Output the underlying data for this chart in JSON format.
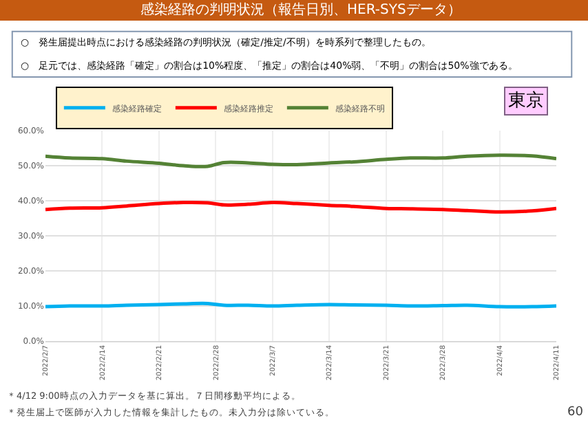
{
  "chart_data": {
    "type": "line",
    "title": "感染経路の判明状況（報告日別、HER-SYSデータ）",
    "subtitle": [
      "○　発生届提出時点における感染経路の判明状況（確定/推定/不明）を時系列で整理したもの。",
      "○　足元では、感染経路「確定」の割合は10%程度、「推定」の割合は40%弱、「不明」の割合は50%強である。"
    ],
    "annotations": [
      "東京",
      "＊4/12 9:00時点の入力データを基に算出。７日間移動平均による。",
      "＊発生届上で医師が入力した情報を集計したもの。未入力分は除いている。",
      "60"
    ],
    "x": [
      "2022-02-07",
      "2022-02-10",
      "2022-02-14",
      "2022-02-17",
      "2022-02-21",
      "2022-02-24",
      "2022-02-27",
      "2022-03-01",
      "2022-03-04",
      "2022-03-07",
      "2022-03-10",
      "2022-03-14",
      "2022-03-17",
      "2022-03-21",
      "2022-03-24",
      "2022-03-28",
      "2022-03-31",
      "2022-04-04",
      "2022-04-08",
      "2022-04-11"
    ],
    "series": [
      {
        "name": "感染経路確定",
        "color": "#00b0f0",
        "values": [
          9.8,
          10.0,
          10.0,
          10.2,
          10.4,
          10.6,
          10.7,
          10.2,
          10.2,
          10.0,
          10.2,
          10.4,
          10.3,
          10.2,
          10.0,
          10.1,
          10.2,
          9.8,
          9.8,
          10.0
        ]
      },
      {
        "name": "感染経路推定",
        "color": "#ff0000",
        "values": [
          37.5,
          37.9,
          38.0,
          38.5,
          39.2,
          39.5,
          39.4,
          38.8,
          39.0,
          39.5,
          39.2,
          38.7,
          38.4,
          37.8,
          37.7,
          37.5,
          37.2,
          36.8,
          37.1,
          37.8
        ]
      },
      {
        "name": "感染経路不明",
        "color": "#548235",
        "values": [
          52.7,
          52.2,
          52.0,
          51.3,
          50.7,
          50.0,
          49.8,
          50.9,
          50.8,
          50.4,
          50.3,
          50.8,
          51.1,
          51.8,
          52.2,
          52.2,
          52.7,
          53.0,
          52.8,
          52.0
        ]
      }
    ],
    "xlim": [
      "2022-02-07",
      "2022-04-11"
    ],
    "xticks": [
      {
        "value": "2022-02-07",
        "label": "2022/2/7"
      },
      {
        "value": "2022-02-14",
        "label": "2022/2/14"
      },
      {
        "value": "2022-02-21",
        "label": "2022/2/21"
      },
      {
        "value": "2022-02-28",
        "label": "2022/2/28"
      },
      {
        "value": "2022-03-07",
        "label": "2022/3/7"
      },
      {
        "value": "2022-03-14",
        "label": "2022/3/14"
      },
      {
        "value": "2022-03-21",
        "label": "2022/3/21"
      },
      {
        "value": "2022-03-28",
        "label": "2022/3/28"
      },
      {
        "value": "2022-04-04",
        "label": "2022/4/4"
      },
      {
        "value": "2022-04-11",
        "label": "2022/4/11"
      }
    ],
    "ylim": [
      0,
      60
    ],
    "yticks": [
      {
        "value": 0,
        "label": "0.0%"
      },
      {
        "value": 10,
        "label": "10.0%"
      },
      {
        "value": 20,
        "label": "20.0%"
      },
      {
        "value": 30,
        "label": "30.0%"
      },
      {
        "value": 40,
        "label": "40.0%"
      },
      {
        "value": 50,
        "label": "50.0%"
      },
      {
        "value": 60,
        "label": "60.0%"
      }
    ],
    "grid": true,
    "legend": "top left",
    "marker": "none",
    "line_style": "solid"
  }
}
